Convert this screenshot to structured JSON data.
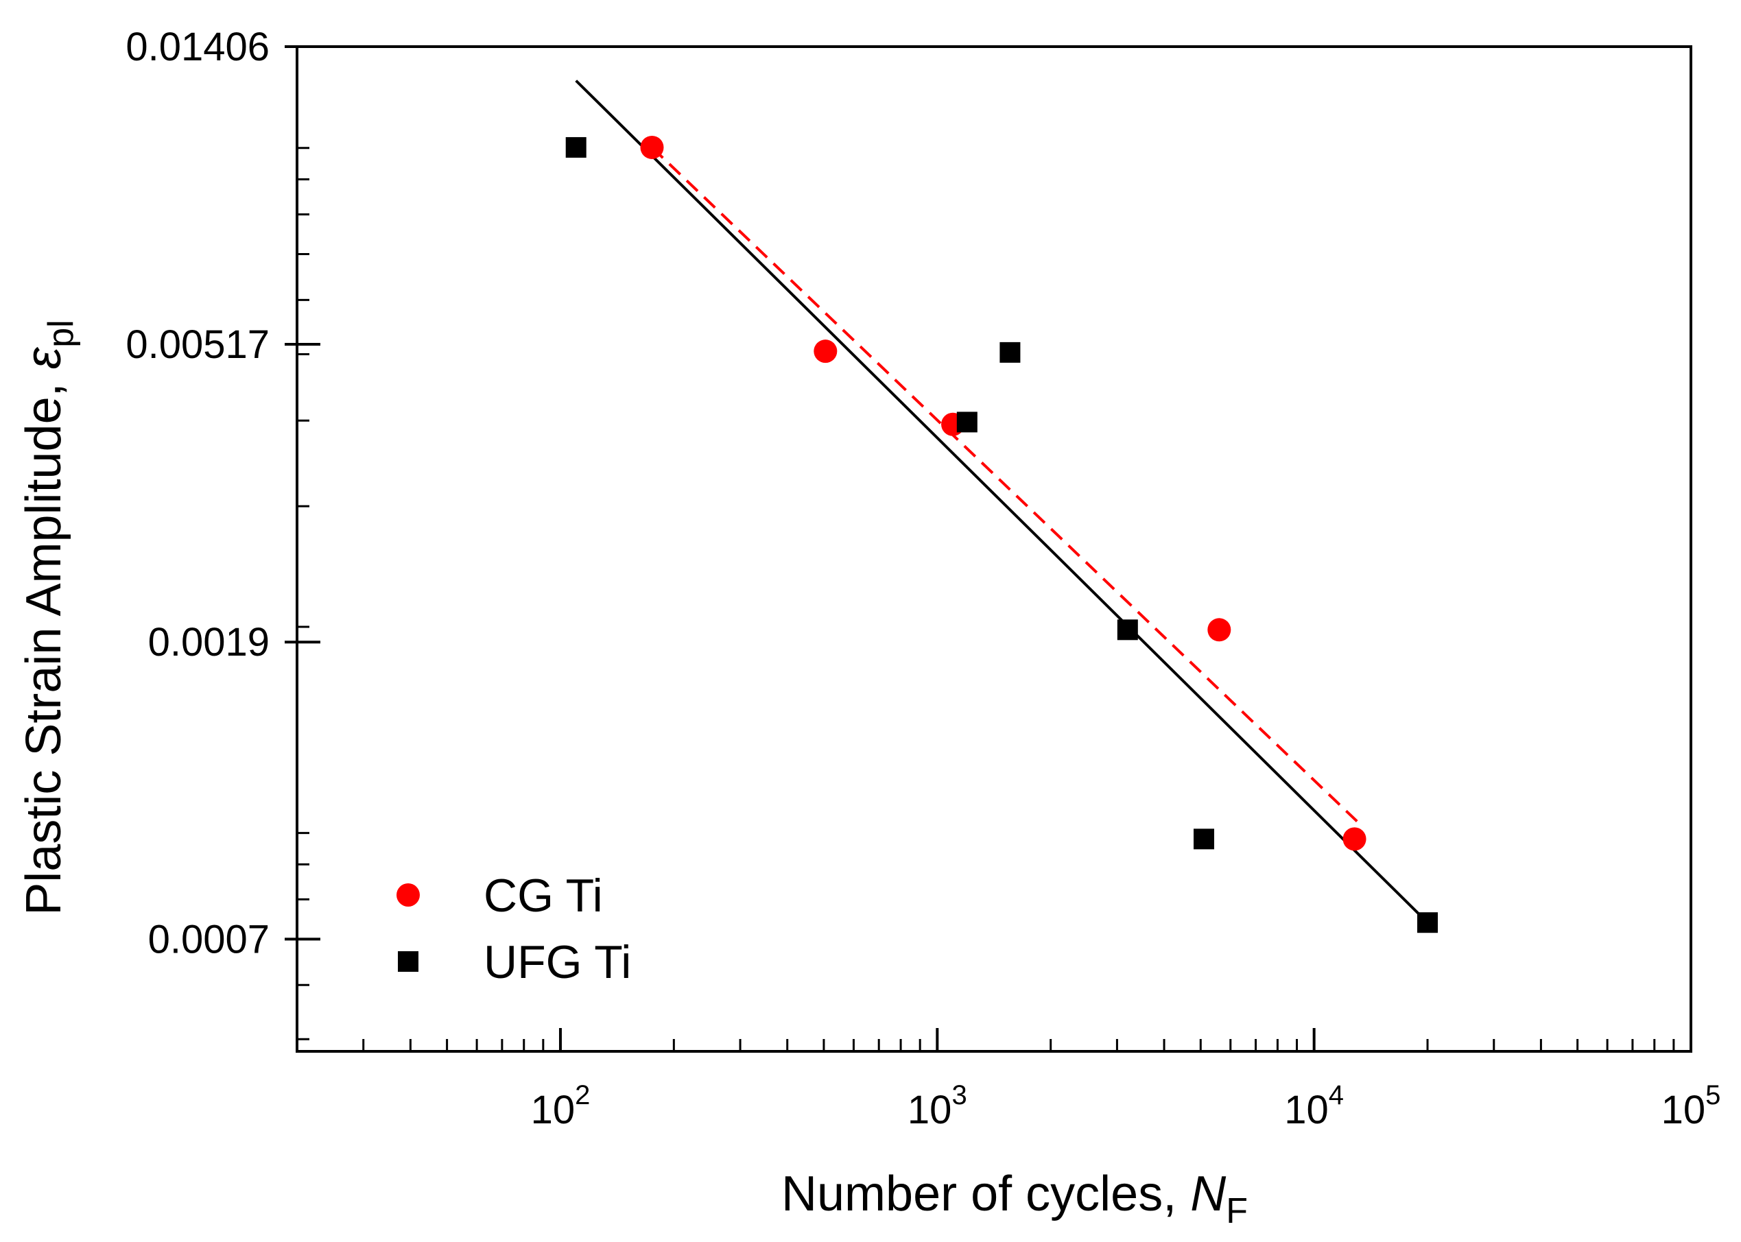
{
  "chart_data": {
    "type": "scatter",
    "title": "",
    "xlabel": {
      "text": "Number of cycles, ",
      "italic": "N",
      "sub": "F"
    },
    "ylabel": {
      "text": "Plastic Strain Amplitude, ",
      "italic": "ε",
      "sub": "pl"
    },
    "xscale": "log",
    "yscale": "log",
    "xlim": [
      20,
      100000
    ],
    "ylim": [
      0.00048,
      0.01406
    ],
    "x_ticks": [
      {
        "value": 100,
        "base": "10",
        "exp": "2"
      },
      {
        "value": 1000,
        "base": "10",
        "exp": "3"
      },
      {
        "value": 10000,
        "base": "10",
        "exp": "4"
      },
      {
        "value": 100000,
        "base": "10",
        "exp": "5"
      }
    ],
    "y_ticks": [
      {
        "value": 0.01406,
        "label": "0.01406"
      },
      {
        "value": 0.00517,
        "label": "0.00517"
      },
      {
        "value": 0.0019,
        "label": "0.0019"
      },
      {
        "value": 0.0007,
        "label": "0.0007"
      }
    ],
    "series": [
      {
        "name": "CG Ti",
        "marker": "circle",
        "color": "#ff0000",
        "points": [
          [
            175,
            0.01002
          ],
          [
            505,
            0.00505
          ],
          [
            1100,
            0.00395
          ],
          [
            5600,
            0.00198
          ],
          [
            12800,
            0.00098
          ]
        ]
      },
      {
        "name": "UFG Ti",
        "marker": "square",
        "color": "#000000",
        "points": [
          [
            110,
            0.01002
          ],
          [
            1200,
            0.00398
          ],
          [
            1560,
            0.00503
          ],
          [
            3200,
            0.00198
          ],
          [
            5100,
            0.00098
          ],
          [
            20000,
            0.00074
          ]
        ]
      }
    ],
    "fits": [
      {
        "name": "CG Ti fit",
        "style": "dashed",
        "color": "#ff0000",
        "from": [
          175,
          0.01002
        ],
        "to": [
          13000,
          0.00104
        ]
      },
      {
        "name": "UFG Ti fit",
        "style": "solid",
        "color": "#000000",
        "from": [
          110,
          0.01254
        ],
        "to": [
          20000,
          0.00074
        ]
      }
    ],
    "legend": {
      "position": "bottom-left",
      "entries": [
        {
          "label": "CG Ti",
          "marker": "circle",
          "color": "#ff0000"
        },
        {
          "label": "UFG Ti",
          "marker": "square",
          "color": "#000000"
        }
      ]
    }
  }
}
